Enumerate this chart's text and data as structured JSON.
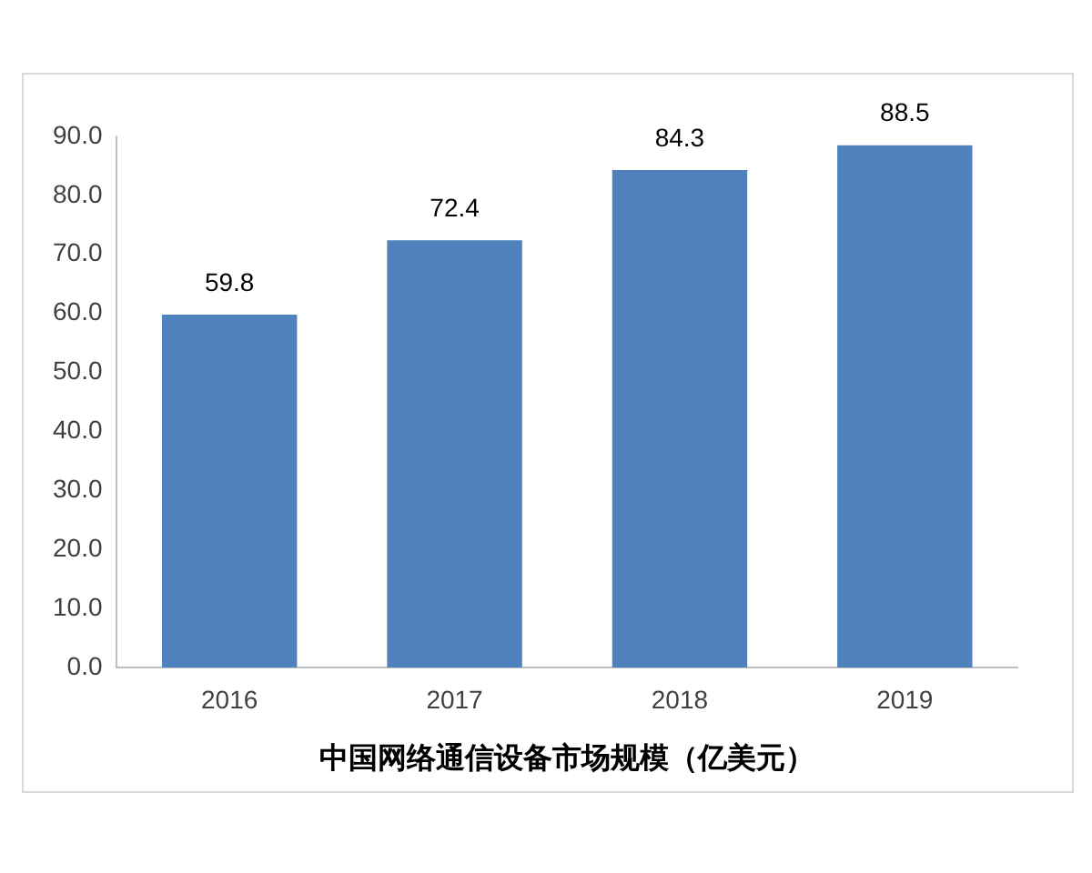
{
  "chart_data": {
    "type": "bar",
    "xlabel": "中国网络通信设备市场规模（亿美元）",
    "categories": [
      "2016",
      "2017",
      "2018",
      "2019"
    ],
    "values": [
      59.8,
      72.4,
      84.3,
      88.5
    ],
    "color": "#4f81bd",
    "ylim": [
      0,
      90
    ],
    "yticks": [
      {
        "value": 0,
        "label": "0.0"
      },
      {
        "value": 10,
        "label": "10.0"
      },
      {
        "value": 20,
        "label": "20.0"
      },
      {
        "value": 30,
        "label": "30.0"
      },
      {
        "value": 40,
        "label": "40.0"
      },
      {
        "value": 50,
        "label": "50.0"
      },
      {
        "value": 60,
        "label": "60.0"
      },
      {
        "value": 70,
        "label": "70.0"
      },
      {
        "value": 80,
        "label": "80.0"
      },
      {
        "value": 90,
        "label": "90.0"
      }
    ],
    "grid": false,
    "data_labels": true,
    "legend": false
  }
}
